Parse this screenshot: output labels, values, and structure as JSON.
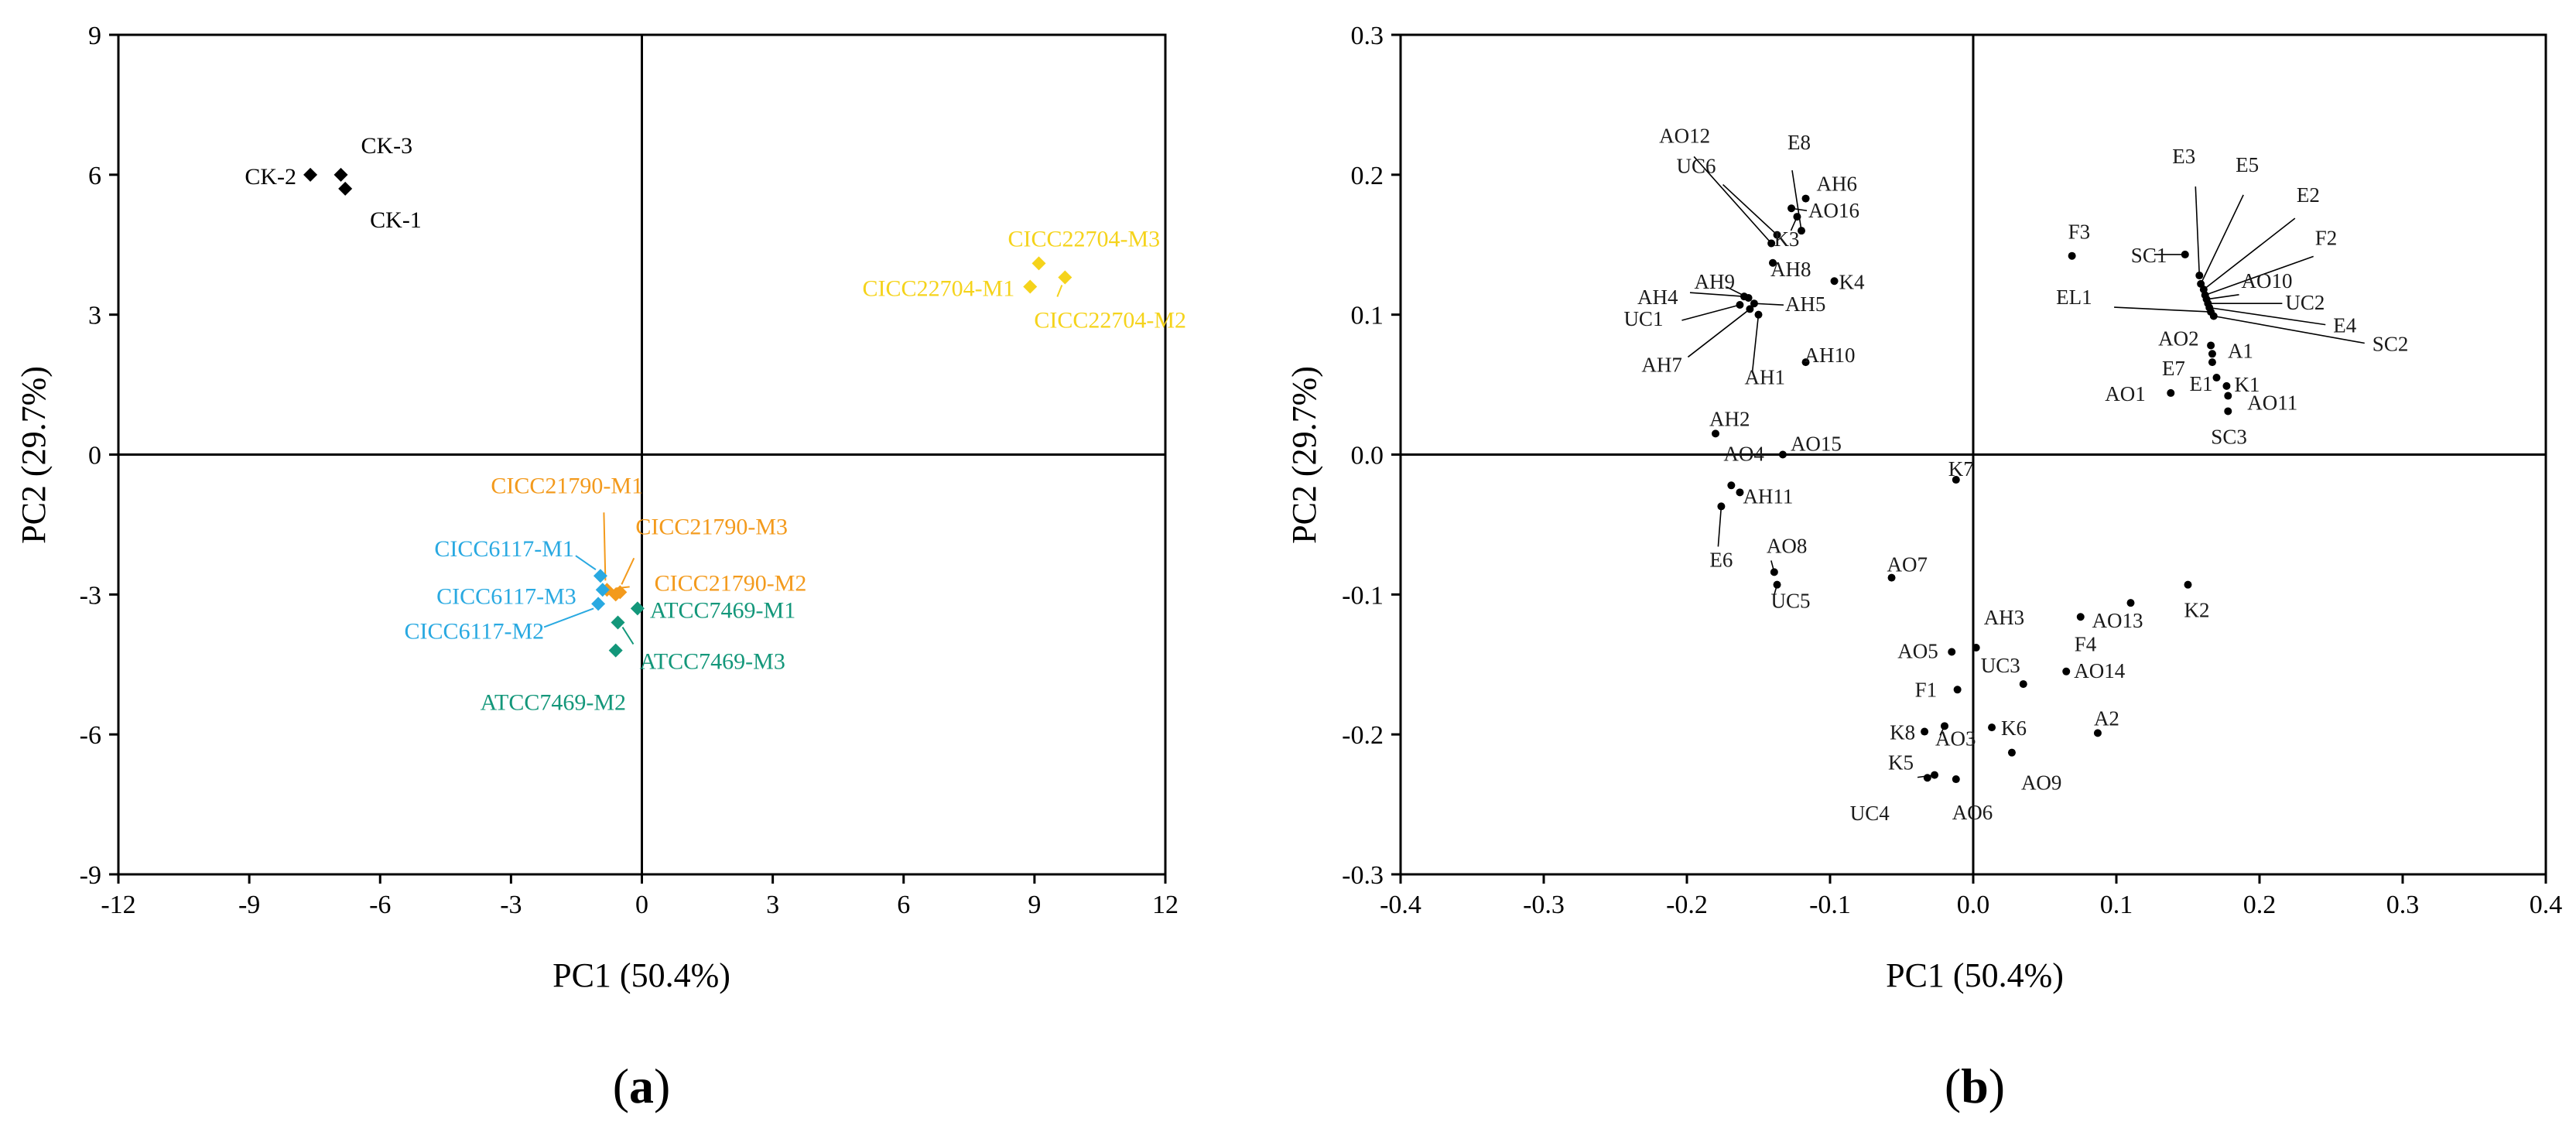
{
  "chart_data": [
    {
      "type": "scatter",
      "panel_label": "(a)",
      "xlabel": "PC1 (50.4%)",
      "ylabel": "PC2 (29.7%)",
      "xlim": [
        -12,
        12
      ],
      "ylim": [
        -9,
        9
      ],
      "xticks": [
        -12,
        -9,
        -6,
        -3,
        0,
        3,
        6,
        9,
        12
      ],
      "yticks": [
        -9,
        -6,
        -3,
        0,
        3,
        6,
        9
      ],
      "grid": false,
      "marker": "diamond",
      "series": [
        {
          "color": "#000000",
          "points": [
            {
              "label": "CK-1",
              "x": -6.8,
              "y": 5.7
            },
            {
              "label": "CK-2",
              "x": -7.6,
              "y": 6.0
            },
            {
              "label": "CK-3",
              "x": -6.9,
              "y": 6.0
            }
          ]
        },
        {
          "color": "#f5d31b",
          "points": [
            {
              "label": "CICC22704-M1",
              "x": 8.9,
              "y": 3.6
            },
            {
              "label": "CICC22704-M2",
              "x": 9.7,
              "y": 3.8
            },
            {
              "label": "CICC22704-M3",
              "x": 9.1,
              "y": 4.1
            }
          ]
        },
        {
          "color": "#f39a1c",
          "points": [
            {
              "label": "CICC21790-M1",
              "x": -0.8,
              "y": -2.9
            },
            {
              "label": "CICC21790-M2",
              "x": -0.6,
              "y": -3.0
            },
            {
              "label": "CICC21790-M3",
              "x": -0.5,
              "y": -2.95
            }
          ]
        },
        {
          "color": "#29a9e1",
          "points": [
            {
              "label": "CICC6117-M1",
              "x": -0.95,
              "y": -2.6
            },
            {
              "label": "CICC6117-M2",
              "x": -1.0,
              "y": -3.2
            },
            {
              "label": "CICC6117-M3",
              "x": -0.9,
              "y": -2.9
            }
          ]
        },
        {
          "color": "#13977a",
          "points": [
            {
              "label": "ATCC7469-M1",
              "x": -0.1,
              "y": -3.3
            },
            {
              "label": "ATCC7469-M2",
              "x": -0.6,
              "y": -4.2
            },
            {
              "label": "ATCC7469-M3",
              "x": -0.55,
              "y": -3.6
            }
          ]
        }
      ]
    },
    {
      "type": "scatter",
      "panel_label": "(b)",
      "xlabel": "PC1 (50.4%)",
      "ylabel": "PC2 (29.7%)",
      "xlim": [
        -0.4,
        0.4
      ],
      "ylim": [
        -0.3,
        0.3
      ],
      "xticks": [
        "-0.4",
        "-0.3",
        "-0.2",
        "-0.1",
        "0.0",
        "0.1",
        "0.2",
        "0.3",
        "0.4"
      ],
      "yticks": [
        "-0.3",
        "-0.2",
        "-0.1",
        "0.0",
        "0.1",
        "0.2",
        "0.3"
      ],
      "grid": false,
      "marker": "dot",
      "color": "#000000",
      "points": [
        {
          "label": "AO12",
          "x": -0.141,
          "y": 0.151
        },
        {
          "label": "E8",
          "x": -0.12,
          "y": 0.16
        },
        {
          "label": "AH6",
          "x": -0.117,
          "y": 0.183
        },
        {
          "label": "UC6",
          "x": -0.137,
          "y": 0.157
        },
        {
          "label": "AO16",
          "x": -0.127,
          "y": 0.176
        },
        {
          "label": "K3",
          "x": -0.123,
          "y": 0.17
        },
        {
          "label": "AH8",
          "x": -0.14,
          "y": 0.137
        },
        {
          "label": "K4",
          "x": -0.097,
          "y": 0.124
        },
        {
          "label": "AH9",
          "x": -0.157,
          "y": 0.112
        },
        {
          "label": "AH4",
          "x": -0.16,
          "y": 0.113
        },
        {
          "label": "AH5",
          "x": -0.153,
          "y": 0.108
        },
        {
          "label": "UC1",
          "x": -0.163,
          "y": 0.107
        },
        {
          "label": "AH7",
          "x": -0.156,
          "y": 0.104
        },
        {
          "label": "AH1",
          "x": -0.15,
          "y": 0.1
        },
        {
          "label": "AH10",
          "x": -0.117,
          "y": 0.066
        },
        {
          "label": "AH2",
          "x": -0.18,
          "y": 0.015
        },
        {
          "label": "AO15",
          "x": -0.133,
          "y": 0.0
        },
        {
          "label": "AO4",
          "x": -0.169,
          "y": -0.022
        },
        {
          "label": "AH11",
          "x": -0.163,
          "y": -0.027
        },
        {
          "label": "E6",
          "x": -0.176,
          "y": -0.037
        },
        {
          "label": "AO8",
          "x": -0.139,
          "y": -0.084
        },
        {
          "label": "UC5",
          "x": -0.137,
          "y": -0.093
        },
        {
          "label": "AO7",
          "x": -0.057,
          "y": -0.088
        },
        {
          "label": "K7",
          "x": -0.012,
          "y": -0.018
        },
        {
          "label": "F3",
          "x": 0.069,
          "y": 0.142
        },
        {
          "label": "SC1",
          "x": 0.148,
          "y": 0.143
        },
        {
          "label": "E3",
          "x": 0.158,
          "y": 0.128
        },
        {
          "label": "E5",
          "x": 0.159,
          "y": 0.122
        },
        {
          "label": "E2",
          "x": 0.161,
          "y": 0.118
        },
        {
          "label": "F2",
          "x": 0.162,
          "y": 0.114
        },
        {
          "label": "AO10",
          "x": 0.163,
          "y": 0.111
        },
        {
          "label": "UC2",
          "x": 0.164,
          "y": 0.108
        },
        {
          "label": "E4",
          "x": 0.165,
          "y": 0.105
        },
        {
          "label": "EL1",
          "x": 0.166,
          "y": 0.102
        },
        {
          "label": "SC2",
          "x": 0.168,
          "y": 0.099
        },
        {
          "label": "AO2",
          "x": 0.166,
          "y": 0.078
        },
        {
          "label": "A1",
          "x": 0.167,
          "y": 0.072
        },
        {
          "label": "E7",
          "x": 0.167,
          "y": 0.066
        },
        {
          "label": "E1",
          "x": 0.17,
          "y": 0.055
        },
        {
          "label": "K1",
          "x": 0.177,
          "y": 0.049
        },
        {
          "label": "AO11",
          "x": 0.178,
          "y": 0.042
        },
        {
          "label": "AO1",
          "x": 0.138,
          "y": 0.044
        },
        {
          "label": "SC3",
          "x": 0.178,
          "y": 0.031
        },
        {
          "label": "AH3",
          "x": 0.002,
          "y": -0.138
        },
        {
          "label": "AO5",
          "x": -0.015,
          "y": -0.141
        },
        {
          "label": "F1",
          "x": -0.011,
          "y": -0.168
        },
        {
          "label": "UC3",
          "x": 0.035,
          "y": -0.164
        },
        {
          "label": "K8",
          "x": -0.034,
          "y": -0.198
        },
        {
          "label": "AO3",
          "x": -0.02,
          "y": -0.194
        },
        {
          "label": "K6",
          "x": 0.013,
          "y": -0.195
        },
        {
          "label": "K5",
          "x": -0.027,
          "y": -0.229
        },
        {
          "label": "UC4",
          "x": -0.032,
          "y": -0.231
        },
        {
          "label": "AO6",
          "x": -0.012,
          "y": -0.232
        },
        {
          "label": "AO9",
          "x": 0.027,
          "y": -0.213
        },
        {
          "label": "F4",
          "x": 0.075,
          "y": -0.116
        },
        {
          "label": "AO13",
          "x": 0.11,
          "y": -0.106
        },
        {
          "label": "K2",
          "x": 0.15,
          "y": -0.093
        },
        {
          "label": "AO14",
          "x": 0.065,
          "y": -0.155
        },
        {
          "label": "A2",
          "x": 0.087,
          "y": -0.199
        }
      ]
    }
  ]
}
